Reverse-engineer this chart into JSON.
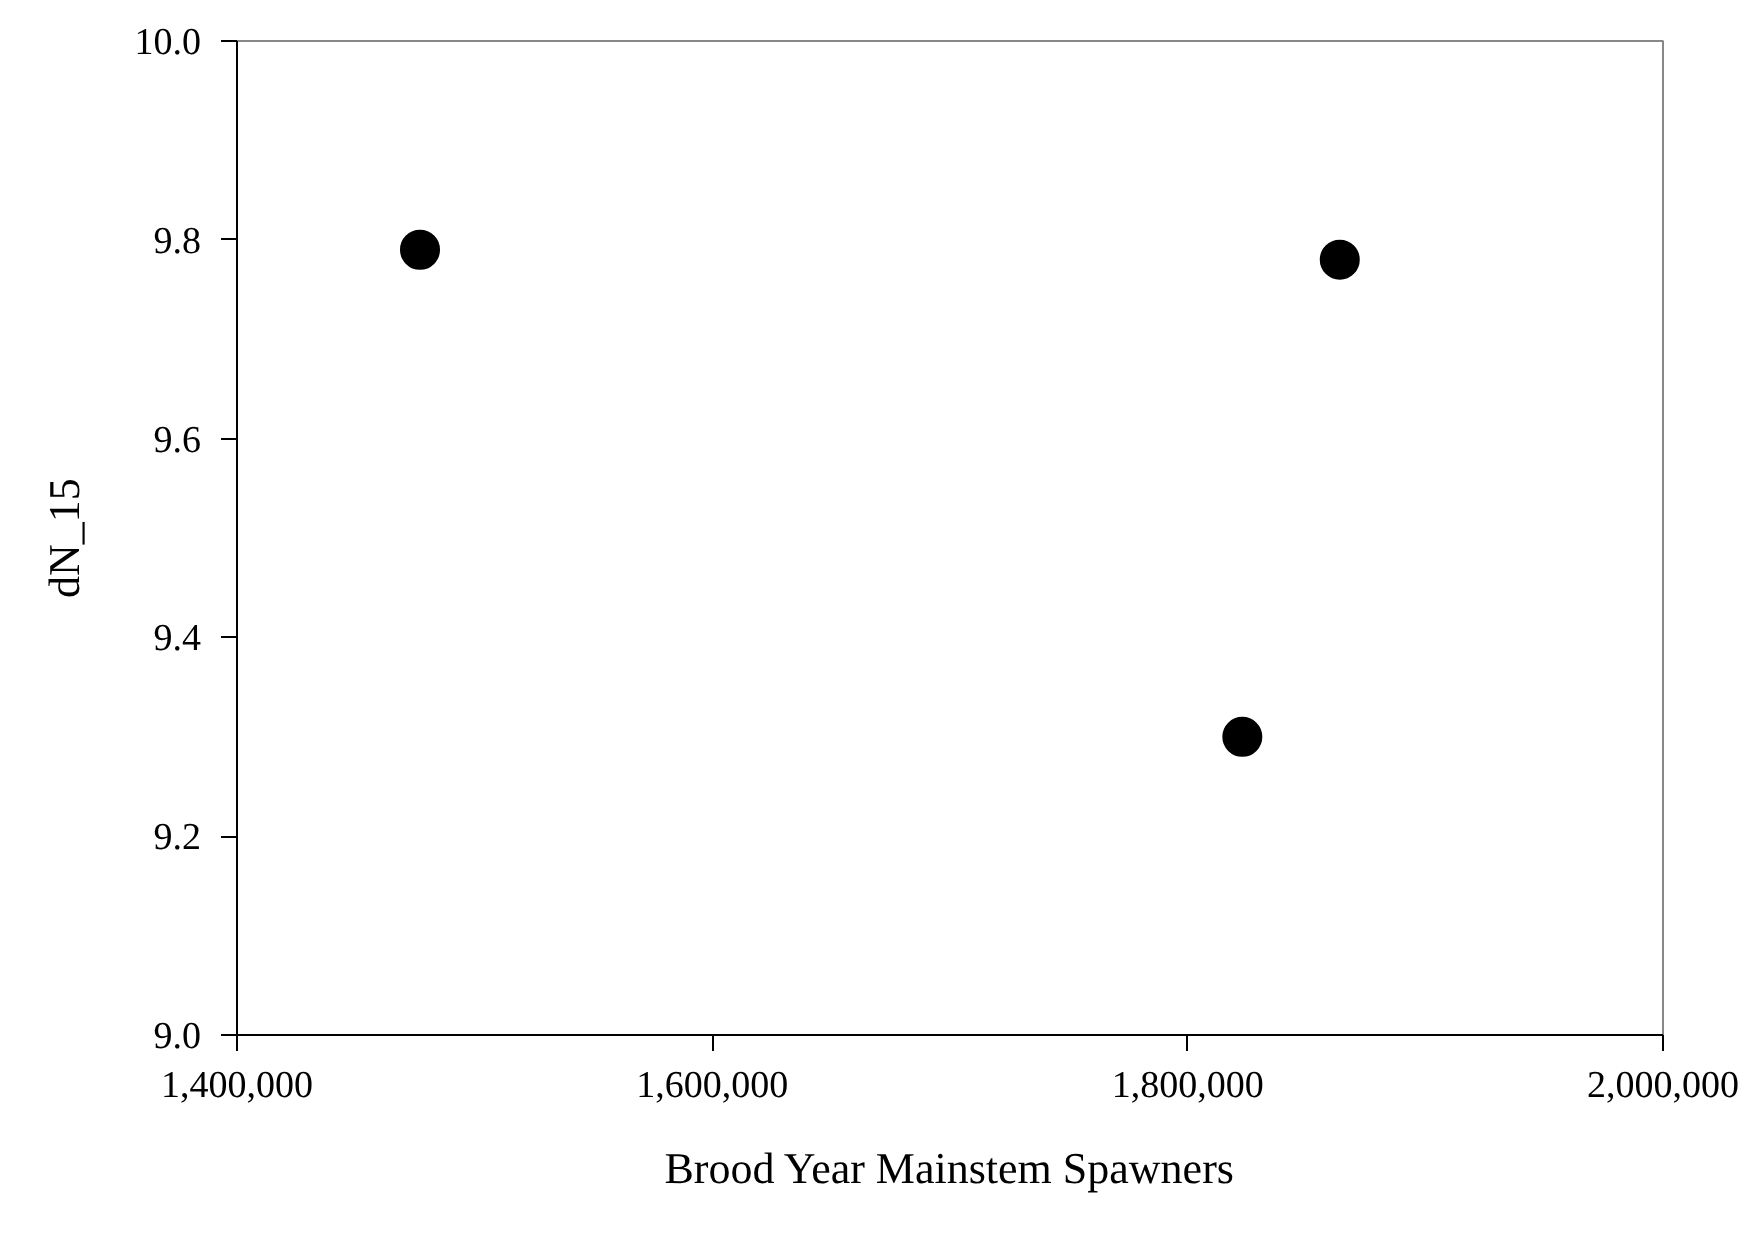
{
  "chart_data": {
    "type": "scatter",
    "xlabel": "Brood Year Mainstem Spawners",
    "ylabel": "dN_15",
    "x": [
      1477000,
      1823000,
      1864000
    ],
    "values": [
      9.79,
      9.3,
      9.78
    ],
    "color": "#000000",
    "marker": "circle",
    "xlim": [
      1400000,
      2000000
    ],
    "xticks": [
      {
        "value": 1400000,
        "label": "1,400,000"
      },
      {
        "value": 1600000,
        "label": "1,600,000"
      },
      {
        "value": 1800000,
        "label": "1,800,000"
      },
      {
        "value": 2000000,
        "label": "2,000,000"
      }
    ],
    "ylim": [
      9.0,
      10.0
    ],
    "yticks": [
      {
        "value": 9.0,
        "label": "9.0"
      },
      {
        "value": 9.2,
        "label": "9.2"
      },
      {
        "value": 9.4,
        "label": "9.4"
      },
      {
        "value": 9.6,
        "label": "9.6"
      },
      {
        "value": 9.8,
        "label": "9.8"
      },
      {
        "value": 10.0,
        "label": "10.0"
      }
    ],
    "grid": false
  }
}
